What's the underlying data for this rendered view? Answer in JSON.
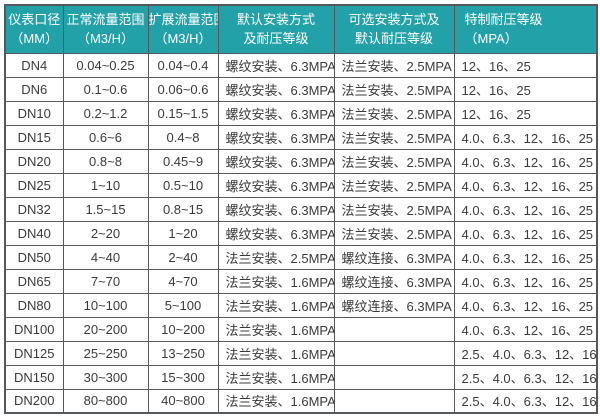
{
  "colors": {
    "header_background": "#23a1a8",
    "header_text": "#ffffff",
    "border": "#54585b",
    "body_text": "#3a3a3a",
    "body_background": "#ffffff"
  },
  "table": {
    "name": "flow-meter-specification-table",
    "header": {
      "columns": [
        {
          "line1": "仪表口径",
          "line2": "（MM）"
        },
        {
          "line1": "正常流量范围",
          "line2": "（M3/H）"
        },
        {
          "line1": "扩展流量范围",
          "line2": "（M3/H）"
        },
        {
          "line1": "默认安装方式",
          "line2": "及耐压等级"
        },
        {
          "line1": "可选安装方式及",
          "line2": "默认耐压等级"
        },
        {
          "line1": "特制耐压等级",
          "line2": "（MPA）"
        }
      ]
    },
    "column_keys": [
      "diameter",
      "normal-flow-range",
      "extended-flow-range",
      "default-installation",
      "optional-installation",
      "special-pressure-rating"
    ],
    "rows": [
      [
        "DN4",
        "0.04~0.25",
        "0.04~0.4",
        "螺纹安装、6.3MPA",
        "法兰安装、2.5MPA",
        "12、16、25"
      ],
      [
        "DN6",
        "0.1~0.6",
        "0.06~0.6",
        "螺纹安装、6.3MPA",
        "法兰安装、2.5MPA",
        "12、16、25"
      ],
      [
        "DN10",
        "0.2~1.2",
        "0.15~1.5",
        "螺纹安装、6.3MPA",
        "法兰安装、2.5MPA",
        "12、16、25"
      ],
      [
        "DN15",
        "0.6~6",
        "0.4~8",
        "螺纹安装、6.3MPA",
        "法兰安装、2.5MPA",
        "4.0、6.3、12、16、25"
      ],
      [
        "DN20",
        "0.8~8",
        "0.45~9",
        "螺纹安装、6.3MPA",
        "法兰安装、2.5MPA",
        "4.0、6.3、12、16、25"
      ],
      [
        "DN25",
        "1~10",
        "0.5~10",
        "螺纹安装、6.3MPA",
        "法兰安装、2.5MPA",
        "4.0、6.3、12、16、25"
      ],
      [
        "DN32",
        "1.5~15",
        "0.8~15",
        "螺纹安装、6.3MPA",
        "法兰安装、2.5MPA",
        "4.0、6.3、12、16、25"
      ],
      [
        "DN40",
        "2~20",
        "1~20",
        "螺纹安装、6.3MPA",
        "法兰安装、2.5MPA",
        "4.0、6.3、12、16、25"
      ],
      [
        "DN50",
        "4~40",
        "2~40",
        "法兰安装、2.5MPA",
        "螺纹连接、6.3MPA",
        "4.0、6.3、12、16、25"
      ],
      [
        "DN65",
        "7~70",
        "4~70",
        "法兰安装、1.6MPA",
        "螺纹连接、6.3MPA",
        "4.0、6.3、12、16、25"
      ],
      [
        "DN80",
        "10~100",
        "5~100",
        "法兰安装、1.6MPA",
        "螺纹连接、6.3MPA",
        "4.0、6.3、12、16、25"
      ],
      [
        "DN100",
        "20~200",
        "10~200",
        "法兰安装、1.6MPA",
        "",
        "4.0、6.3、12、16、25"
      ],
      [
        "DN125",
        "25~250",
        "13~250",
        "法兰安装、1.6MPA",
        "",
        "2.5、4.0、6.3、12、16"
      ],
      [
        "DN150",
        "30~300",
        "15~300",
        "法兰安装、1.6MPA",
        "",
        "2.5、4.0、6.3、12、16"
      ],
      [
        "DN200",
        "80~800",
        "40~800",
        "法兰安装、1.6MPA",
        "",
        "2.5、4.0、6.3、12、16"
      ]
    ]
  }
}
